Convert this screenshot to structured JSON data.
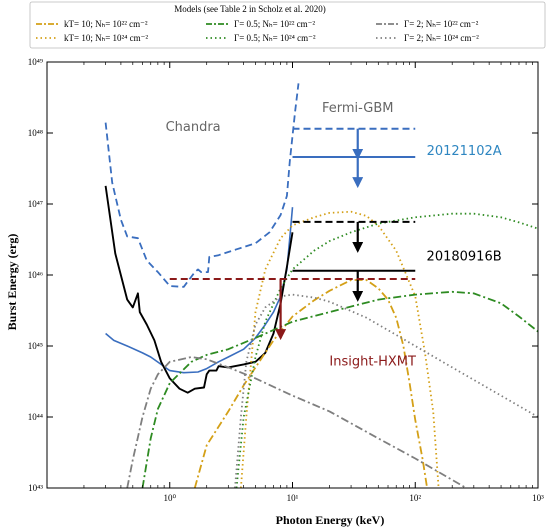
{
  "chart_data": {
    "type": "line",
    "title": "",
    "xlabel": "Photon Energy (keV)",
    "ylabel": "Burst Energy (erg)",
    "xscale": "log",
    "yscale": "log",
    "xlim": [
      0.1,
      1000
    ],
    "ylim": [
      1e+43,
      1e+49
    ],
    "x_ticks": [
      {
        "value": 1,
        "label": "10⁰"
      },
      {
        "value": 10,
        "label": "10¹"
      },
      {
        "value": 100,
        "label": "10²"
      },
      {
        "value": 1000,
        "label": "10³"
      }
    ],
    "y_ticks": [
      {
        "value": 1e+43,
        "label": "10⁴³"
      },
      {
        "value": 1e+44,
        "label": "10⁴⁴"
      },
      {
        "value": 1e+45,
        "label": "10⁴⁵"
      },
      {
        "value": 1e+46,
        "label": "10⁴⁶"
      },
      {
        "value": 1e+47,
        "label": "10⁴⁷"
      },
      {
        "value": 1e+48,
        "label": "10⁴⁸"
      },
      {
        "value": 1e+49,
        "label": "10⁴⁹"
      }
    ],
    "grid": false,
    "legend": {
      "title": "Models (see Table 2 in Scholz et al. 2020)",
      "placement": "top",
      "entries": [
        {
          "label": "kT= 10; Nₕ= 10²² cm⁻²",
          "color": "#d4a017",
          "dash": "dashdot"
        },
        {
          "label": "kT= 10; Nₕ= 10²⁴ cm⁻²",
          "color": "#d4a017",
          "dash": "dotted"
        },
        {
          "label": "Γ= 0.5; Nₕ= 10²² cm⁻²",
          "color": "#2e8b22",
          "dash": "dashdot"
        },
        {
          "label": "Γ= 0.5; Nₕ= 10²⁴ cm⁻²",
          "color": "#2e8b22",
          "dash": "dotted"
        },
        {
          "label": "Γ= 2; Nₕ= 10²² cm⁻²",
          "color": "#7f7f7f",
          "dash": "dashdot"
        },
        {
          "label": "Γ= 2; Nₕ= 10²⁴ cm⁻²",
          "color": "#7f7f7f",
          "dash": "dotted"
        }
      ]
    },
    "annotations": [
      {
        "text": "Chandra",
        "x": 1.55,
        "y": 1.2e+48,
        "color": "#666666"
      },
      {
        "text": "Fermi-GBM",
        "x": 34,
        "y": 2.2e+48,
        "color": "#666666"
      },
      {
        "text": "20121102A",
        "x": 250,
        "y": 5.5e+47,
        "color": "#2e86c1"
      },
      {
        "text": "20180916B",
        "x": 250,
        "y": 1.8e+46,
        "color": "#000000"
      },
      {
        "text": "Insight-HXMT",
        "x": 45,
        "y": 6e+44,
        "color": "#8b1a1a"
      }
    ],
    "series": [
      {
        "name": "",
        "color": "#3a6ebf",
        "style": "dashed",
        "width": 1.8,
        "points": [
          [
            0.3,
            1.4e+48
          ],
          [
            0.34,
            2e+47
          ],
          [
            0.4,
            6e+46
          ],
          [
            0.45,
            3.5e+46
          ],
          [
            0.55,
            3.3e+46
          ],
          [
            0.65,
            1.6e+46
          ],
          [
            0.8,
            1.1e+46
          ],
          [
            1.0,
            7e+45
          ],
          [
            1.3,
            6.8e+45
          ],
          [
            1.6,
            1.1e+46
          ],
          [
            1.7,
            1.2e+46
          ],
          [
            1.8,
            1.1e+46
          ],
          [
            2.05,
            1.1e+46
          ],
          [
            2.1,
            1.8e+46
          ],
          [
            2.5,
            1.9e+46
          ],
          [
            3.5,
            2.3e+46
          ],
          [
            5,
            2.8e+46
          ],
          [
            6.5,
            4e+46
          ],
          [
            8,
            7e+46
          ],
          [
            9,
            1.3e+47
          ],
          [
            9.5,
            4e+47
          ],
          [
            10.5,
            2e+48
          ],
          [
            11.2,
            5e+48
          ]
        ]
      },
      {
        "name": "",
        "color": "#3a6ebf",
        "style": "solid",
        "width": 1.6,
        "points": [
          [
            0.3,
            1.5e+45
          ],
          [
            0.35,
            1.2e+45
          ],
          [
            0.45,
            1e+45
          ],
          [
            0.6,
            8e+44
          ],
          [
            0.7,
            7e+44
          ],
          [
            0.85,
            5.5e+44
          ],
          [
            1.0,
            4.5e+44
          ],
          [
            1.3,
            4.2e+44
          ],
          [
            1.7,
            4.3e+44
          ],
          [
            2,
            4.8e+44
          ],
          [
            2.5,
            6e+44
          ],
          [
            3,
            7e+44
          ],
          [
            4,
            9e+44
          ],
          [
            5,
            1.3e+45
          ],
          [
            6,
            2e+45
          ],
          [
            7,
            3e+45
          ],
          [
            8,
            5e+45
          ],
          [
            9,
            1.2e+46
          ],
          [
            9.6,
            4e+46
          ],
          [
            10,
            9e+46
          ]
        ]
      },
      {
        "name": "",
        "color": "#000000",
        "style": "solid",
        "width": 1.9,
        "points": [
          [
            0.3,
            1.8e+47
          ],
          [
            0.36,
            2e+46
          ],
          [
            0.45,
            4.5e+45
          ],
          [
            0.5,
            3.5e+45
          ],
          [
            0.55,
            5.5e+45
          ],
          [
            0.57,
            3e+45
          ],
          [
            0.65,
            2e+45
          ],
          [
            0.75,
            1.2e+45
          ],
          [
            0.85,
            6e+44
          ],
          [
            1.0,
            3.5e+44
          ],
          [
            1.2,
            2.5e+44
          ],
          [
            1.4,
            2.2e+44
          ],
          [
            1.6,
            2.5e+44
          ],
          [
            1.9,
            2.6e+44
          ],
          [
            2.0,
            4e+44
          ],
          [
            2.1,
            4.5e+44
          ],
          [
            2.4,
            4.5e+44
          ],
          [
            2.5,
            5.2e+44
          ],
          [
            3,
            5e+44
          ],
          [
            4,
            5.5e+44
          ],
          [
            5,
            6e+44
          ],
          [
            6,
            8e+44
          ],
          [
            7,
            1.5e+45
          ],
          [
            8,
            4e+45
          ],
          [
            9,
            1.3e+46
          ],
          [
            10,
            4e+46
          ]
        ]
      },
      {
        "name": "",
        "color": "#d4a017",
        "style": "dashdot",
        "width": 1.8,
        "points": [
          [
            1.6,
            1e+43
          ],
          [
            2,
            4e+43
          ],
          [
            3,
            1.2e+44
          ],
          [
            4,
            2.8e+44
          ],
          [
            5,
            5e+44
          ],
          [
            7,
            1.2e+45
          ],
          [
            10,
            2.6e+45
          ],
          [
            15,
            4.4e+45
          ],
          [
            20,
            6e+45
          ],
          [
            30,
            8.5e+45
          ],
          [
            40,
            8.5e+45
          ],
          [
            50,
            6.5e+45
          ],
          [
            60,
            4.5e+45
          ],
          [
            70,
            2.5e+45
          ],
          [
            80,
            1e+45
          ],
          [
            90,
            3e+44
          ],
          [
            100,
            9e+43
          ],
          [
            115,
            2.5e+43
          ],
          [
            125,
            1e+43
          ]
        ]
      },
      {
        "name": "",
        "color": "#d4a017",
        "style": "dotted",
        "width": 1.8,
        "points": [
          [
            3.8,
            1e+43
          ],
          [
            4.2,
            1e+44
          ],
          [
            5,
            3e+45
          ],
          [
            6,
            1.2e+46
          ],
          [
            8,
            3.3e+46
          ],
          [
            10,
            5e+46
          ],
          [
            15,
            6.5e+46
          ],
          [
            20,
            7.5e+46
          ],
          [
            30,
            7.8e+46
          ],
          [
            40,
            6.8e+46
          ],
          [
            50,
            5e+46
          ],
          [
            70,
            2.2e+46
          ],
          [
            100,
            5e+45
          ],
          [
            120,
            8e+44
          ],
          [
            140,
            1.2e+44
          ],
          [
            155,
            1e+43
          ]
        ]
      },
      {
        "name": "",
        "color": "#2e8b22",
        "style": "dashdot",
        "width": 1.8,
        "points": [
          [
            0.6,
            1e+43
          ],
          [
            0.7,
            5e+43
          ],
          [
            0.8,
            1.3e+44
          ],
          [
            1.0,
            3e+44
          ],
          [
            1.5,
            6e+44
          ],
          [
            2,
            7.5e+44
          ],
          [
            3,
            9e+44
          ],
          [
            5,
            1.3e+45
          ],
          [
            10,
            2.2e+45
          ],
          [
            20,
            3e+45
          ],
          [
            50,
            4.5e+45
          ],
          [
            100,
            5.3e+45
          ],
          [
            200,
            5.8e+45
          ],
          [
            300,
            5.5e+45
          ],
          [
            500,
            4e+45
          ],
          [
            700,
            2.6e+45
          ],
          [
            1000,
            1.6e+45
          ]
        ]
      },
      {
        "name": "",
        "color": "#2e8b22",
        "style": "dotted",
        "width": 1.8,
        "points": [
          [
            3.5,
            1e+43
          ],
          [
            4,
            1e+44
          ],
          [
            5,
            7e+44
          ],
          [
            6,
            2.2e+45
          ],
          [
            8,
            6.5e+45
          ],
          [
            10,
            1.2e+46
          ],
          [
            15,
            2.2e+46
          ],
          [
            20,
            3e+46
          ],
          [
            30,
            4e+46
          ],
          [
            50,
            5.3e+46
          ],
          [
            100,
            6.5e+46
          ],
          [
            200,
            7.3e+46
          ],
          [
            300,
            7.3e+46
          ],
          [
            500,
            6.5e+46
          ],
          [
            700,
            5.5e+46
          ],
          [
            1000,
            4.5e+46
          ]
        ]
      },
      {
        "name": "",
        "color": "#7f7f7f",
        "style": "dashdot",
        "width": 1.8,
        "points": [
          [
            0.45,
            1e+43
          ],
          [
            0.5,
            2.5e+43
          ],
          [
            0.6,
            1e+44
          ],
          [
            0.7,
            2.5e+44
          ],
          [
            0.8,
            4e+44
          ],
          [
            1.0,
            6e+44
          ],
          [
            1.5,
            7e+44
          ],
          [
            2,
            6.5e+44
          ],
          [
            3,
            5e+44
          ],
          [
            5,
            3.5e+44
          ],
          [
            10,
            2e+44
          ],
          [
            20,
            1.2e+44
          ],
          [
            50,
            5e+43
          ],
          [
            100,
            2.6e+43
          ],
          [
            200,
            1.3e+43
          ],
          [
            260,
            1e+43
          ]
        ]
      },
      {
        "name": "",
        "color": "#7f7f7f",
        "style": "dotted",
        "width": 1.8,
        "points": [
          [
            3.4,
            1e+43
          ],
          [
            3.8,
            1e+44
          ],
          [
            4.2,
            6e+44
          ],
          [
            5,
            2e+45
          ],
          [
            6,
            3.5e+45
          ],
          [
            8,
            5e+45
          ],
          [
            10,
            5.3e+45
          ],
          [
            15,
            4.8e+45
          ],
          [
            20,
            4.2e+45
          ],
          [
            40,
            2.5e+45
          ],
          [
            100,
            1e+45
          ],
          [
            200,
            5e+44
          ],
          [
            500,
            2e+44
          ],
          [
            1000,
            1e+44
          ]
        ]
      }
    ],
    "upper_limits": [
      {
        "x0": 10,
        "x1": 100,
        "y": 1.15e+48,
        "color": "#3a6ebf",
        "style": "dashed",
        "arrow_x": 34,
        "arrow_to": 4.5e+47
      },
      {
        "x0": 10,
        "x1": 100,
        "y": 4.6e+47,
        "color": "#3a6ebf",
        "style": "solid",
        "arrow_x": 34,
        "arrow_to": 1.8e+47
      },
      {
        "x0": 10,
        "x1": 100,
        "y": 5.6e+46,
        "color": "#000000",
        "style": "dashed",
        "arrow_x": 34,
        "arrow_to": 2.2e+46
      },
      {
        "x0": 10,
        "x1": 100,
        "y": 1.15e+46,
        "color": "#000000",
        "style": "solid",
        "arrow_x": 34,
        "arrow_to": 4.5e+45
      },
      {
        "x0": 1,
        "x1": 100,
        "y": 8.8e+45,
        "color": "#8b1a1a",
        "style": "dashed",
        "arrow_x": 8,
        "arrow_to": 1.3e+45
      }
    ]
  }
}
